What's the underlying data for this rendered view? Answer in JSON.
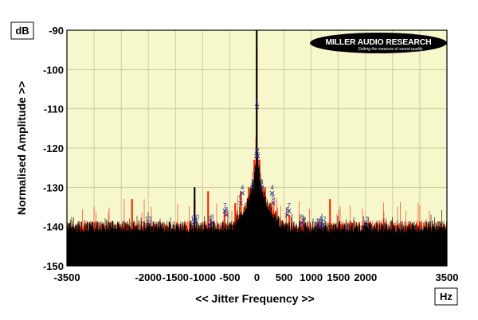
{
  "chart_data": {
    "type": "line",
    "xlabel": "<< Jitter Frequency >>",
    "ylabel": "Normalised Amplitude >>",
    "y_unit": "dB",
    "x_unit": "Hz",
    "xlim": [
      -3500,
      3500
    ],
    "ylim": [
      -150,
      -90
    ],
    "x_ticks": [
      -3500,
      -3000,
      -2500,
      -2000,
      -1500,
      -1000,
      -500,
      0,
      500,
      1000,
      1500,
      2000,
      2500,
      3000,
      3500
    ],
    "x_tick_labels": [
      "-3500",
      "",
      "",
      "-2000",
      "-1500",
      "-1000",
      "-500",
      "0",
      "500",
      "1000",
      "1500",
      "2000",
      "",
      "",
      "3500"
    ],
    "y_ticks": [
      -150,
      -140,
      -130,
      -120,
      -110,
      -100,
      -90
    ],
    "y_tick_labels": [
      "-150",
      "-140",
      "-130",
      "-120",
      "-110",
      "-100",
      "-90"
    ],
    "grid": true,
    "background": "#f7f7cc",
    "series": [
      {
        "color": "#ff2200",
        "noise_floor": -145.5,
        "peaks": [
          {
            "x": -2300,
            "y": -133
          },
          {
            "x": -2000,
            "y": -140
          },
          {
            "x": -1300,
            "y": -140
          },
          {
            "x": -1150,
            "y": -133
          },
          {
            "x": -900,
            "y": -131
          },
          {
            "x": -850,
            "y": -138
          },
          {
            "x": -600,
            "y": -136
          },
          {
            "x": -400,
            "y": -134
          },
          {
            "x": -300,
            "y": -131
          },
          {
            "x": -150,
            "y": -130
          },
          {
            "x": -50,
            "y": -123
          },
          {
            "x": 0,
            "y": -95
          },
          {
            "x": 50,
            "y": -123
          },
          {
            "x": 150,
            "y": -130
          },
          {
            "x": 250,
            "y": -134
          },
          {
            "x": 350,
            "y": -136
          },
          {
            "x": 600,
            "y": -137
          },
          {
            "x": 850,
            "y": -138
          },
          {
            "x": 1150,
            "y": -140
          },
          {
            "x": 1350,
            "y": -133
          },
          {
            "x": 2050,
            "y": -140
          }
        ]
      },
      {
        "color": "#000000",
        "noise_floor": -146.5,
        "peaks": [
          {
            "x": -1150,
            "y": -130
          },
          {
            "x": 0,
            "y": -90
          },
          {
            "x": 2000,
            "y": -139
          }
        ]
      }
    ],
    "peak_markers": [
      {
        "label": "13",
        "x": -2000,
        "y": -139.5
      },
      {
        "label": "11",
        "x": -1160,
        "y": -139.5
      },
      {
        "label": "10",
        "x": -1130,
        "y": -139
      },
      {
        "label": "9",
        "x": -870,
        "y": -139.5
      },
      {
        "label": "8",
        "x": -830,
        "y": -139
      },
      {
        "label": "7",
        "x": -590,
        "y": -136
      },
      {
        "label": "6",
        "x": -560,
        "y": -137
      },
      {
        "label": "5",
        "x": -300,
        "y": -134
      },
      {
        "label": "4",
        "x": -270,
        "y": -131.5
      },
      {
        "label": "3",
        "x": -75,
        "y": -130
      },
      {
        "label": "2",
        "x": -10,
        "y": -122
      },
      {
        "label": "1",
        "x": 0,
        "y": -109.5
      },
      {
        "label": "2",
        "x": 15,
        "y": -122
      },
      {
        "label": "3",
        "x": 85,
        "y": -130
      },
      {
        "label": "4",
        "x": 280,
        "y": -131.5
      },
      {
        "label": "5",
        "x": 300,
        "y": -134
      },
      {
        "label": "6",
        "x": 560,
        "y": -137
      },
      {
        "label": "7",
        "x": 590,
        "y": -136
      },
      {
        "label": "8",
        "x": 830,
        "y": -139
      },
      {
        "label": "9",
        "x": 870,
        "y": -139.5
      },
      {
        "label": "10",
        "x": 1150,
        "y": -140
      },
      {
        "label": "11",
        "x": 1170,
        "y": -140
      },
      {
        "label": "12",
        "x": 1210,
        "y": -139.5
      },
      {
        "label": "13",
        "x": 2000,
        "y": -139.5
      }
    ]
  },
  "logo": {
    "name": "MILLER AUDIO RESEARCH",
    "tagline": "Setting the measure of sound quality"
  },
  "colors": {
    "plot_background": "#f7f7cc",
    "grid": "#cccc99",
    "marker": "#2a2a8a",
    "series_red": "#ff2200",
    "series_black": "#000000"
  }
}
